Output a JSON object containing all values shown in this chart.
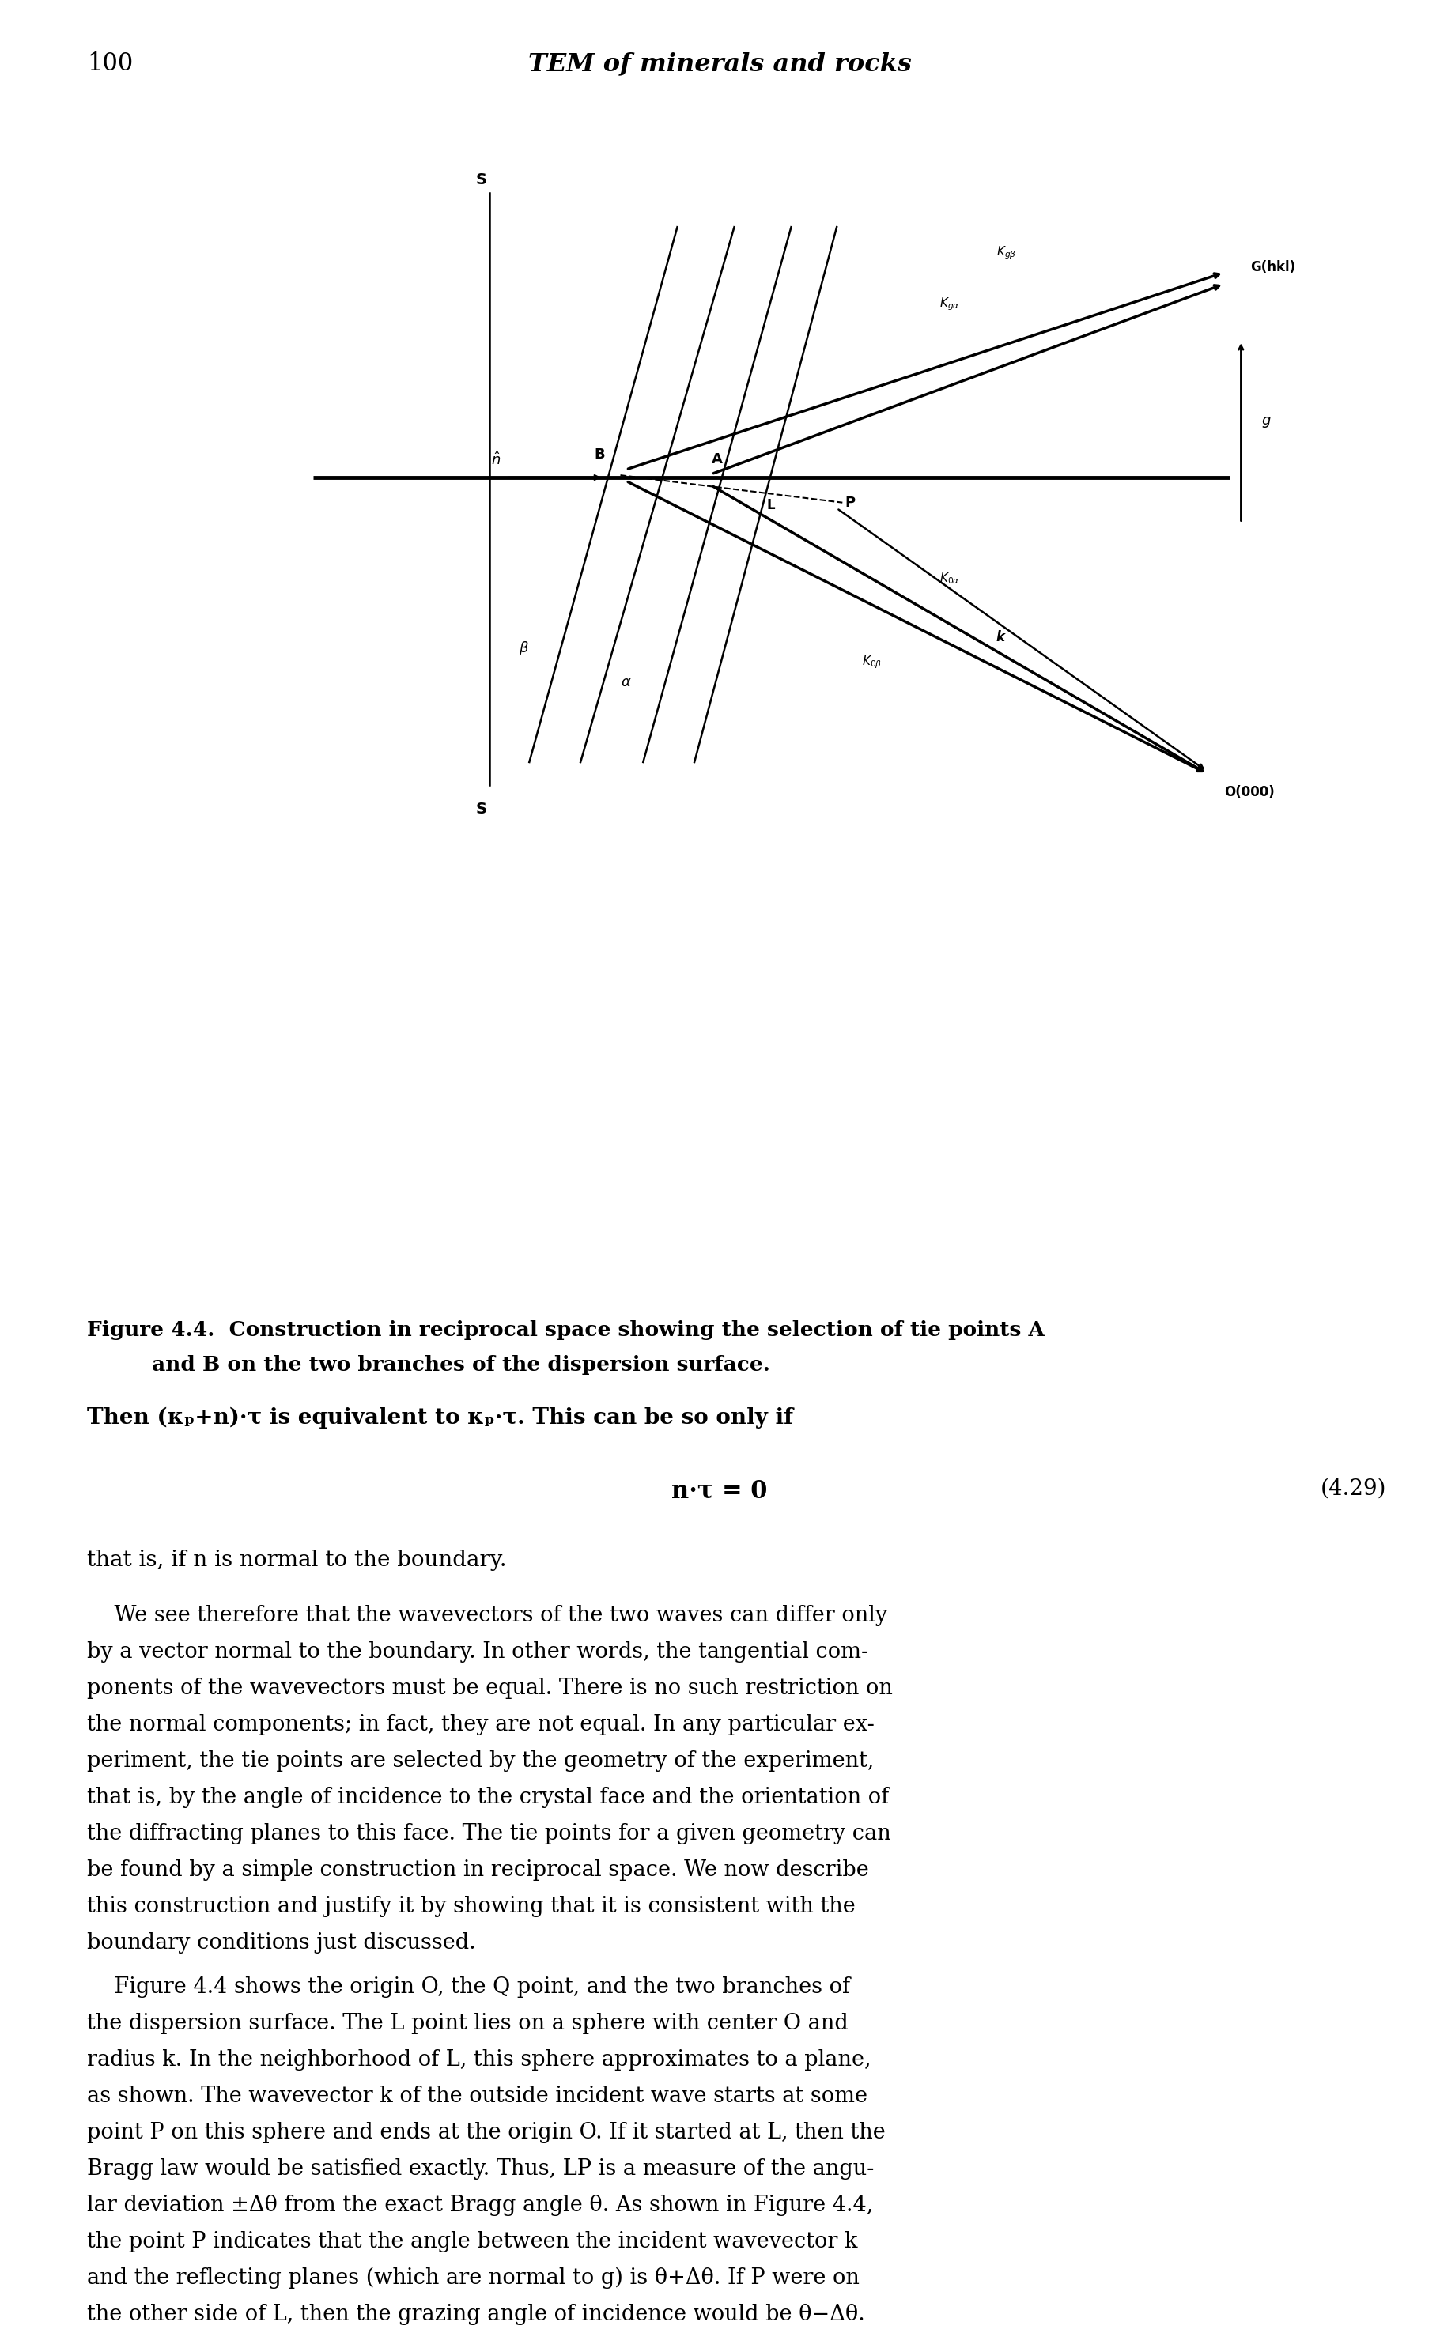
{
  "page_number": "100",
  "header_title": "TEM of minerals and rocks",
  "figure_caption_line1": "Figure 4.4.  Construction in reciprocal space showing the selection of tie points К",
  "figure_caption_line2": "and B on the two branches of the dispersion surface.",
  "bg_color": "#ffffff",
  "text_color": "#000000",
  "paragraph1": "Then (κ_p+n)·τ is equivalent to κ_p·τ. This can be so only if",
  "equation": "n·τ = 0",
  "eq_number": "(4.29)",
  "para2": "that is, if n is normal to the boundary.",
  "para3": "We see therefore that the wavevectors of the two waves can differ only by a vector normal to the boundary. In other words, the tangential components of the wavevectors must be equal. There is no such restriction on the normal components; in fact, they are not equal. In any particular experiment, the tie points are selected by the geometry of the experiment, that is, by the angle of incidence to the crystal face and the orientation of the diffracting planes to this face. The tie points for a given geometry can be found by a simple construction in reciprocal space. We now describe this construction and justify it by showing that it is consistent with the boundary conditions just discussed.",
  "para4": "Figure 4.4 shows the origin O, the Q point, and the two branches of the dispersion surface. The L point lies on a sphere with center O and radius k. In the neighborhood of L, this sphere approximates to a plane, as shown. The wavevector k of the outside incident wave starts at some point P on this sphere and ends at the origin O. If it started at L, then the Bragg law would be satisfied exactly. Thus, LP is a measure of the angular deviation ±Δθ from the exact Bragg angle θ. As shown in Figure 4.4, the point P indicates that the angle between the incident wavevector k and the reflecting planes (which are normal to g) is θ+Δθ. If P were on the other side of L, then the grazing angle of incidence would be θ−Δθ."
}
